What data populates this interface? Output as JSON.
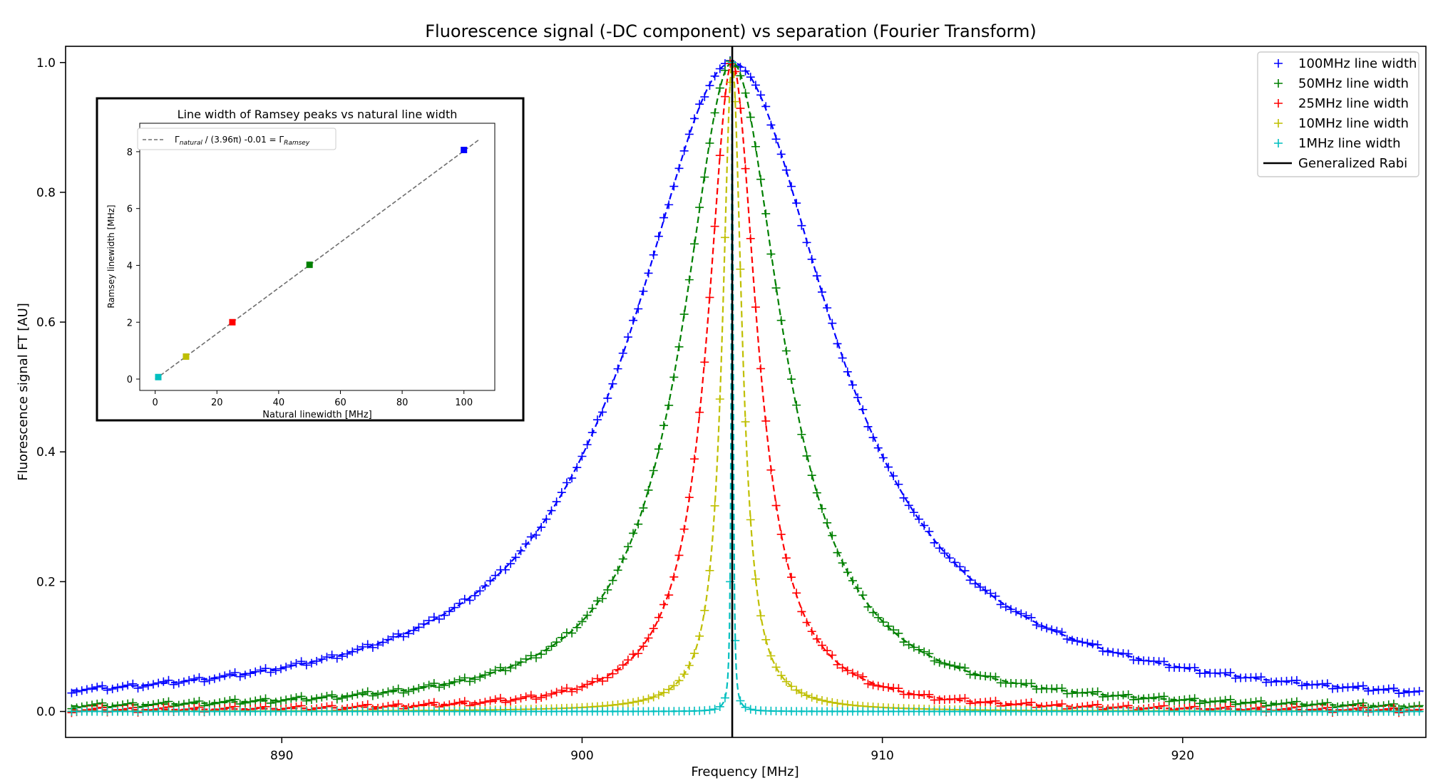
{
  "chart_data": [
    {
      "type": "line",
      "title": "Fluorescence signal (-DC component) vs separation (Fourier Transform)",
      "xlabel": "Frequency [MHz]",
      "ylabel": "Fluorescence signal FT [AU]",
      "xlim": [
        882.8,
        928.1
      ],
      "ylim": [
        -0.04,
        1.025
      ],
      "xticks": [
        890,
        900,
        910,
        920
      ],
      "yticks": [
        0.0,
        0.2,
        0.4,
        0.6,
        0.8,
        1.0
      ],
      "grid": false,
      "legend_position": "top-right",
      "center_frequency": 905.0,
      "frequency_range": [
        883.0,
        928.0
      ],
      "series": [
        {
          "name": "100MHz line width",
          "color": "#0000ff",
          "linewidth_mhz": 8.06,
          "marker": "+",
          "fit": "dashed"
        },
        {
          "name": "50MHz line width",
          "color": "#008000",
          "linewidth_mhz": 4.02,
          "marker": "+",
          "fit": "dashed"
        },
        {
          "name": "25MHz line width",
          "color": "#ff0000",
          "linewidth_mhz": 2.0,
          "marker": "+",
          "fit": "dashed"
        },
        {
          "name": "10MHz line width",
          "color": "#bfbf00",
          "linewidth_mhz": 0.79,
          "marker": "+",
          "fit": "dashed"
        },
        {
          "name": "1MHz line width",
          "color": "#00bfbf",
          "linewidth_mhz": 0.07,
          "marker": "+",
          "fit": "dashed"
        }
      ],
      "vline": {
        "name": "Generalized Rabi",
        "x": 905.0,
        "color": "#000000"
      }
    },
    {
      "type": "scatter",
      "title": "Line width of Ramsey peaks vs natural line width",
      "xlabel": "Natural linewidth [MHz]",
      "ylabel": "Ramsey linewidth [MHz]",
      "xlim": [
        -5,
        110
      ],
      "ylim": [
        -0.4,
        9.0
      ],
      "xticks": [
        0,
        20,
        40,
        60,
        80,
        100
      ],
      "yticks": [
        0,
        2,
        4,
        6,
        8
      ],
      "legend_position": "top-left",
      "points": [
        {
          "x": 1,
          "y": 0.07,
          "color": "#00bfbf"
        },
        {
          "x": 10,
          "y": 0.79,
          "color": "#bfbf00"
        },
        {
          "x": 25,
          "y": 2.0,
          "color": "#ff0000"
        },
        {
          "x": 50,
          "y": 4.02,
          "color": "#008000"
        },
        {
          "x": 100,
          "y": 8.06,
          "color": "#0000ff"
        }
      ],
      "fit": {
        "slope_divisor": 12.44,
        "intercept": -0.01,
        "x_range": [
          0,
          105
        ],
        "color": "#6e6e6e"
      },
      "fit_label": {
        "gamma": "Γ",
        "sub_natural": "natural",
        "middle": " / (3.96π) -0.01 = ",
        "sub_ramsey": "Ramsey"
      }
    }
  ]
}
